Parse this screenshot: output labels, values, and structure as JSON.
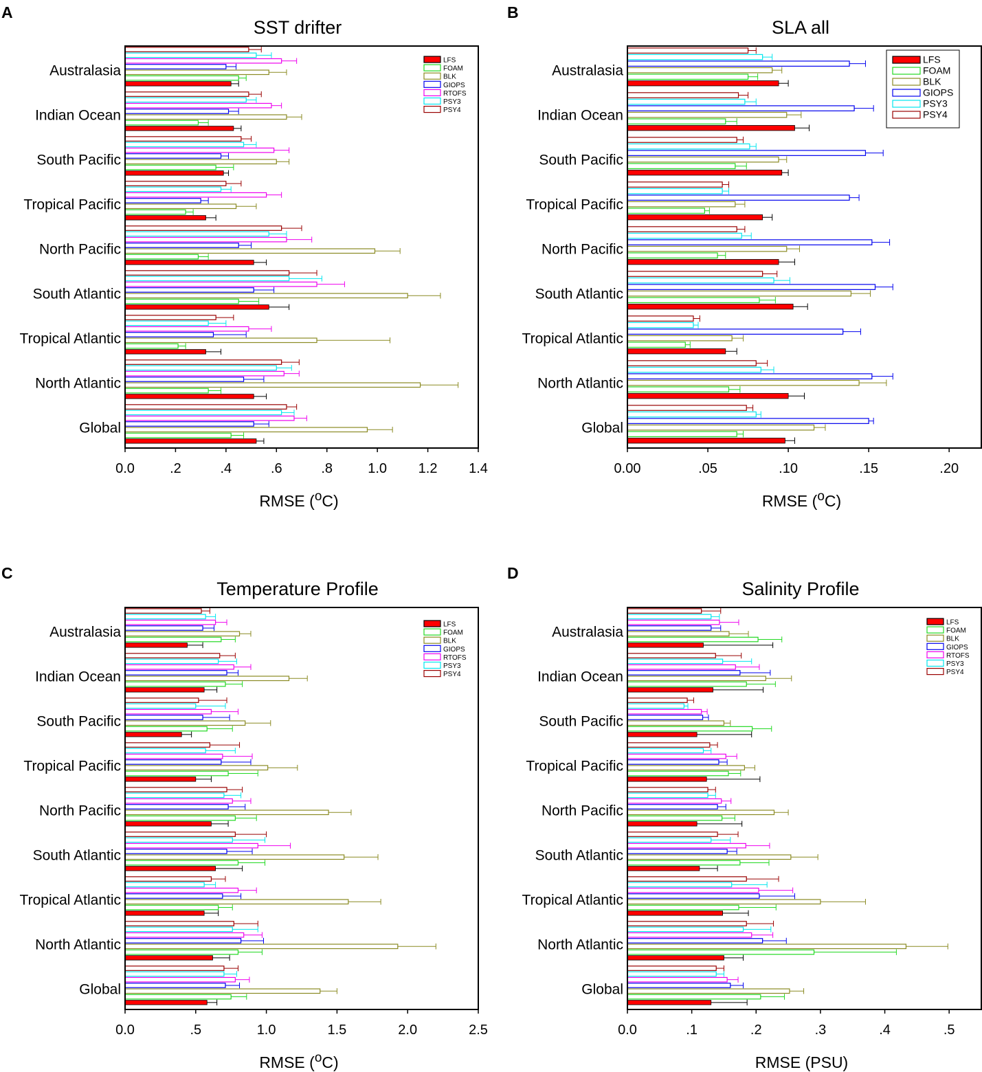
{
  "figure": {
    "series_names": [
      "LFS",
      "FOAM",
      "BLK",
      "GIOPS",
      "RTOFS",
      "PSY3",
      "PSY4"
    ],
    "series_colors": {
      "LFS": "#ff0000",
      "FOAM": "#22d822",
      "BLK": "#8a8a22",
      "GIOPS": "#0000ee",
      "RTOFS": "#ee00ee",
      "PSY3": "#00e5ee",
      "PSY4": "#990000"
    },
    "error_bar_color": "#000000"
  },
  "chart_data": [
    {
      "type": "bar",
      "panel_label": "A",
      "title": "SST drifter",
      "xlabel": "RMSE (oC)",
      "xlabel_main": "RMSE (",
      "xlabel_sup": "o",
      "xlabel_tail": "C)",
      "xlim": [
        0,
        1.4
      ],
      "xticks": [
        0,
        0.2,
        0.4,
        0.6,
        0.8,
        1.0,
        1.2,
        1.4
      ],
      "xtick_labels": [
        "0.0",
        ".2",
        ".4",
        ".6",
        ".8",
        "1.0",
        "1.2",
        "1.4"
      ],
      "categories": [
        "Global",
        "North Atlantic",
        "Tropical Atlantic",
        "South Atlantic",
        "North Pacific",
        "Tropical Pacific",
        "South Pacific",
        "Indian Ocean",
        "Australasia"
      ],
      "legend": [
        "LFS",
        "FOAM",
        "BLK",
        "GIOPS",
        "RTOFS",
        "PSY3",
        "PSY4"
      ],
      "series": [
        {
          "name": "LFS",
          "values": [
            0.52,
            0.51,
            0.32,
            0.57,
            0.51,
            0.32,
            0.39,
            0.43,
            0.42
          ],
          "errors": [
            0.03,
            0.05,
            0.06,
            0.08,
            0.05,
            0.04,
            0.02,
            0.03,
            0.03
          ]
        },
        {
          "name": "FOAM",
          "values": [
            0.42,
            0.33,
            0.21,
            0.45,
            0.29,
            0.24,
            0.36,
            0.29,
            0.45
          ],
          "errors": [
            0.05,
            0.05,
            0.03,
            0.08,
            0.04,
            0.03,
            0.07,
            0.04,
            0.03
          ]
        },
        {
          "name": "BLK",
          "values": [
            0.96,
            1.17,
            0.76,
            1.12,
            0.99,
            0.44,
            0.6,
            0.64,
            0.57
          ],
          "errors": [
            0.1,
            0.15,
            0.29,
            0.13,
            0.1,
            0.08,
            0.05,
            0.06,
            0.07
          ]
        },
        {
          "name": "GIOPS",
          "values": [
            0.51,
            0.47,
            0.35,
            0.51,
            0.45,
            0.3,
            0.38,
            0.41,
            0.4
          ],
          "errors": [
            0.06,
            0.08,
            0.13,
            0.08,
            0.05,
            0.03,
            0.03,
            0.04,
            0.04
          ]
        },
        {
          "name": "RTOFS",
          "values": [
            0.67,
            0.63,
            0.49,
            0.76,
            0.64,
            0.56,
            0.59,
            0.58,
            0.62
          ],
          "errors": [
            0.05,
            0.06,
            0.09,
            0.11,
            0.1,
            0.06,
            0.06,
            0.04,
            0.06
          ]
        },
        {
          "name": "PSY3",
          "values": [
            0.62,
            0.6,
            0.33,
            0.65,
            0.57,
            0.38,
            0.47,
            0.48,
            0.52
          ],
          "errors": [
            0.05,
            0.06,
            0.07,
            0.13,
            0.07,
            0.04,
            0.05,
            0.04,
            0.06
          ]
        },
        {
          "name": "PSY4",
          "values": [
            0.64,
            0.62,
            0.36,
            0.65,
            0.62,
            0.4,
            0.46,
            0.49,
            0.49
          ],
          "errors": [
            0.04,
            0.07,
            0.07,
            0.11,
            0.08,
            0.06,
            0.04,
            0.05,
            0.05
          ]
        }
      ]
    },
    {
      "type": "bar",
      "panel_label": "B",
      "title": "SLA all",
      "xlabel": "RMSE (oC)",
      "xlabel_main": "RMSE (",
      "xlabel_sup": "o",
      "xlabel_tail": "C)",
      "xlim": [
        0,
        0.22
      ],
      "xticks": [
        0,
        0.05,
        0.1,
        0.15,
        0.2
      ],
      "xtick_labels": [
        "0.00",
        ".05",
        ".10",
        ".15",
        ".20"
      ],
      "categories": [
        "Global",
        "North Atlantic",
        "Tropical Atlantic",
        "South Atlantic",
        "North Pacific",
        "Tropical Pacific",
        "South Pacific",
        "Indian Ocean",
        "Australasia"
      ],
      "legend": [
        "LFS",
        "FOAM",
        "BLK",
        "GIOPS",
        "PSY3",
        "PSY4"
      ],
      "series": [
        {
          "name": "LFS",
          "values": [
            0.098,
            0.1,
            0.061,
            0.103,
            0.094,
            0.084,
            0.096,
            0.104,
            0.094
          ],
          "errors": [
            0.006,
            0.01,
            0.007,
            0.009,
            0.01,
            0.006,
            0.004,
            0.009,
            0.006
          ]
        },
        {
          "name": "FOAM",
          "values": [
            0.068,
            0.063,
            0.036,
            0.082,
            0.056,
            0.048,
            0.067,
            0.061,
            0.075
          ],
          "errors": [
            0.004,
            0.007,
            0.003,
            0.01,
            0.005,
            0.003,
            0.007,
            0.007,
            0.006
          ]
        },
        {
          "name": "BLK",
          "values": [
            0.116,
            0.144,
            0.065,
            0.139,
            0.099,
            0.067,
            0.094,
            0.099,
            0.09
          ],
          "errors": [
            0.007,
            0.017,
            0.007,
            0.012,
            0.008,
            0.006,
            0.005,
            0.009,
            0.006
          ]
        },
        {
          "name": "GIOPS",
          "values": [
            0.15,
            0.152,
            0.134,
            0.154,
            0.152,
            0.138,
            0.148,
            0.141,
            0.138
          ],
          "errors": [
            0.003,
            0.013,
            0.011,
            0.011,
            0.011,
            0.006,
            0.011,
            0.012,
            0.01
          ]
        },
        {
          "name": "PSY3",
          "values": [
            0.08,
            0.083,
            0.041,
            0.091,
            0.071,
            0.059,
            0.076,
            0.073,
            0.084
          ],
          "errors": [
            0.003,
            0.008,
            0.003,
            0.01,
            0.006,
            0.004,
            0.004,
            0.007,
            0.006
          ]
        },
        {
          "name": "PSY4",
          "values": [
            0.074,
            0.08,
            0.041,
            0.084,
            0.068,
            0.059,
            0.068,
            0.069,
            0.075
          ],
          "errors": [
            0.004,
            0.007,
            0.004,
            0.009,
            0.005,
            0.004,
            0.004,
            0.006,
            0.005
          ]
        }
      ]
    },
    {
      "type": "bar",
      "panel_label": "C",
      "title": "Temperature Profile",
      "xlabel": "RMSE (oC)",
      "xlabel_main": "RMSE (",
      "xlabel_sup": "o",
      "xlabel_tail": "C)",
      "xlim": [
        0,
        2.5
      ],
      "xticks": [
        0,
        0.5,
        1.0,
        1.5,
        2.0,
        2.5
      ],
      "xtick_labels": [
        "0.0",
        ".5",
        "1.0",
        "1.5",
        "2.0",
        "2.5"
      ],
      "categories": [
        "Global",
        "North Atlantic",
        "Tropical Atlantic",
        "South Atlantic",
        "North Pacific",
        "Tropical Pacific",
        "South Pacific",
        "Indian Ocean",
        "Australasia"
      ],
      "legend": [
        "LFS",
        "FOAM",
        "BLK",
        "GIOPS",
        "RTOFS",
        "PSY3",
        "PSY4"
      ],
      "series": [
        {
          "name": "LFS",
          "values": [
            0.58,
            0.62,
            0.56,
            0.64,
            0.61,
            0.5,
            0.4,
            0.56,
            0.44
          ],
          "errors": [
            0.07,
            0.12,
            0.1,
            0.19,
            0.12,
            0.11,
            0.07,
            0.09,
            0.11
          ]
        },
        {
          "name": "FOAM",
          "values": [
            0.75,
            0.8,
            0.66,
            0.8,
            0.78,
            0.73,
            0.58,
            0.71,
            0.68
          ],
          "errors": [
            0.11,
            0.17,
            0.1,
            0.19,
            0.15,
            0.21,
            0.18,
            0.12,
            0.1
          ]
        },
        {
          "name": "BLK",
          "values": [
            1.38,
            1.93,
            1.58,
            1.55,
            1.44,
            1.01,
            0.85,
            1.16,
            0.81
          ],
          "errors": [
            0.12,
            0.27,
            0.23,
            0.24,
            0.16,
            0.21,
            0.18,
            0.13,
            0.08
          ]
        },
        {
          "name": "GIOPS",
          "values": [
            0.71,
            0.82,
            0.69,
            0.72,
            0.73,
            0.68,
            0.55,
            0.72,
            0.55
          ],
          "errors": [
            0.1,
            0.16,
            0.13,
            0.18,
            0.12,
            0.21,
            0.19,
            0.08,
            0.08
          ]
        },
        {
          "name": "RTOFS",
          "values": [
            0.78,
            0.84,
            0.8,
            0.94,
            0.76,
            0.69,
            0.61,
            0.77,
            0.64
          ],
          "errors": [
            0.1,
            0.13,
            0.13,
            0.23,
            0.13,
            0.21,
            0.19,
            0.12,
            0.08
          ]
        },
        {
          "name": "PSY3",
          "values": [
            0.7,
            0.76,
            0.56,
            0.76,
            0.7,
            0.57,
            0.5,
            0.66,
            0.57
          ],
          "errors": [
            0.09,
            0.18,
            0.08,
            0.23,
            0.12,
            0.21,
            0.21,
            0.13,
            0.07
          ]
        },
        {
          "name": "PSY4",
          "values": [
            0.7,
            0.77,
            0.61,
            0.78,
            0.72,
            0.6,
            0.52,
            0.67,
            0.54
          ],
          "errors": [
            0.1,
            0.17,
            0.1,
            0.22,
            0.11,
            0.21,
            0.2,
            0.11,
            0.06
          ]
        }
      ]
    },
    {
      "type": "bar",
      "panel_label": "D",
      "title": "Salinity Profile",
      "xlabel": "RMSE (PSU)",
      "xlabel_main": "RMSE (PSU)",
      "xlabel_sup": "",
      "xlabel_tail": "",
      "xlim": [
        0,
        0.55
      ],
      "xticks": [
        0,
        0.1,
        0.2,
        0.3,
        0.4,
        0.5
      ],
      "xtick_labels": [
        "0.0",
        ".1",
        ".2",
        ".3",
        ".4",
        ".5"
      ],
      "categories": [
        "Global",
        "North Atlantic",
        "Tropical Atlantic",
        "South Atlantic",
        "North Pacific",
        "Tropical Pacific",
        "South Pacific",
        "Indian Ocean",
        "Australasia"
      ],
      "legend": [
        "LFS",
        "FOAM",
        "BLK",
        "GIOPS",
        "RTOFS",
        "PSY3",
        "PSY4"
      ],
      "series": [
        {
          "name": "LFS",
          "values": [
            0.13,
            0.15,
            0.148,
            0.112,
            0.108,
            0.123,
            0.108,
            0.133,
            0.118
          ],
          "errors": [
            0.056,
            0.03,
            0.04,
            0.028,
            0.07,
            0.083,
            0.085,
            0.078,
            0.108
          ]
        },
        {
          "name": "FOAM",
          "values": [
            0.207,
            0.29,
            0.173,
            0.175,
            0.147,
            0.157,
            0.194,
            0.185,
            0.203
          ],
          "errors": [
            0.037,
            0.128,
            0.058,
            0.045,
            0.02,
            0.019,
            0.03,
            0.045,
            0.037
          ]
        },
        {
          "name": "BLK",
          "values": [
            0.252,
            0.433,
            0.3,
            0.254,
            0.228,
            0.182,
            0.15,
            0.215,
            0.158
          ],
          "errors": [
            0.022,
            0.065,
            0.07,
            0.042,
            0.022,
            0.016,
            0.01,
            0.04,
            0.03
          ]
        },
        {
          "name": "GIOPS",
          "values": [
            0.16,
            0.21,
            0.205,
            0.155,
            0.14,
            0.142,
            0.117,
            0.175,
            0.13
          ],
          "errors": [
            0.02,
            0.037,
            0.055,
            0.015,
            0.013,
            0.013,
            0.009,
            0.047,
            0.015
          ]
        },
        {
          "name": "RTOFS",
          "values": [
            0.155,
            0.193,
            0.204,
            0.184,
            0.146,
            0.153,
            0.115,
            0.168,
            0.143
          ],
          "errors": [
            0.017,
            0.033,
            0.053,
            0.037,
            0.015,
            0.017,
            0.009,
            0.037,
            0.03
          ]
        },
        {
          "name": "PSY3",
          "values": [
            0.138,
            0.18,
            0.162,
            0.13,
            0.125,
            0.118,
            0.088,
            0.148,
            0.13
          ],
          "errors": [
            0.012,
            0.043,
            0.055,
            0.03,
            0.012,
            0.012,
            0.006,
            0.045,
            0.013
          ]
        },
        {
          "name": "PSY4",
          "values": [
            0.138,
            0.185,
            0.185,
            0.14,
            0.125,
            0.128,
            0.093,
            0.137,
            0.115
          ],
          "errors": [
            0.012,
            0.042,
            0.05,
            0.032,
            0.012,
            0.012,
            0.01,
            0.04,
            0.03
          ]
        }
      ]
    }
  ]
}
